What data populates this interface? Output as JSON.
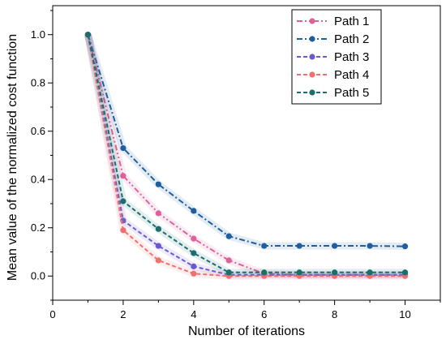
{
  "chart_data": {
    "type": "line",
    "title": "",
    "xlabel": "Number of iterations",
    "ylabel": "Mean value of the normalized cost function",
    "xlim": [
      0,
      11
    ],
    "ylim": [
      -0.1,
      1.12
    ],
    "xticks": [
      "0",
      "2",
      "4",
      "6",
      "8",
      "10"
    ],
    "yticks": [
      "0.0",
      "0.2",
      "0.4",
      "0.6",
      "0.8",
      "1.0"
    ],
    "grid": false,
    "legend_position": "top-right",
    "x": [
      1,
      2,
      3,
      4,
      5,
      6,
      7,
      8,
      9,
      10
    ],
    "series": [
      {
        "name": "Path 1",
        "color": "#e0609a",
        "dash": "dash-dot-dot",
        "values": [
          1.0,
          0.415,
          0.26,
          0.155,
          0.065,
          0.01,
          0.005,
          0.005,
          0.005,
          0.005
        ]
      },
      {
        "name": "Path 2",
        "color": "#1f5fa0",
        "dash": "dash-dot",
        "values": [
          1.0,
          0.53,
          0.38,
          0.27,
          0.165,
          0.125,
          0.125,
          0.125,
          0.125,
          0.123
        ]
      },
      {
        "name": "Path 3",
        "color": "#6a5acd",
        "dash": "dash",
        "values": [
          1.0,
          0.23,
          0.125,
          0.04,
          0.005,
          0.005,
          0.005,
          0.005,
          0.005,
          0.005
        ]
      },
      {
        "name": "Path 4",
        "color": "#f07070",
        "dash": "dash",
        "values": [
          1.0,
          0.19,
          0.065,
          0.01,
          0.0,
          0.0,
          0.0,
          0.0,
          0.0,
          0.0
        ]
      },
      {
        "name": "Path 5",
        "color": "#1a6e6e",
        "dash": "dash",
        "values": [
          1.0,
          0.31,
          0.195,
          0.095,
          0.015,
          0.015,
          0.015,
          0.015,
          0.015,
          0.015
        ]
      }
    ]
  }
}
